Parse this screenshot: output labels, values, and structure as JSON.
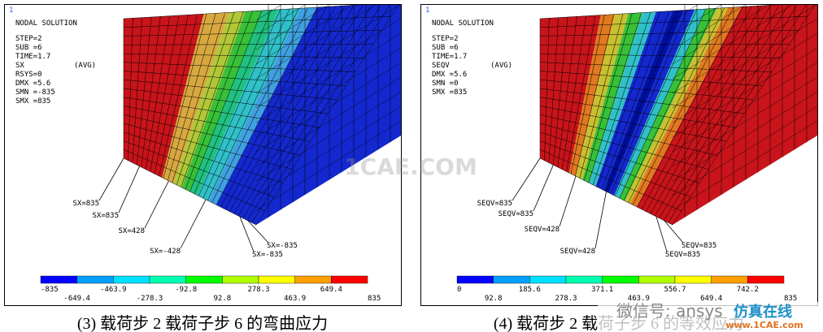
{
  "panels": [
    {
      "index": "1",
      "title": "NODAL SOLUTION",
      "info": [
        "STEP=2",
        "SUB =6",
        "TIME=1.7",
        "SX",
        "RSYS=0",
        "DMX =5.6",
        "SMN =-835",
        "SMX =835"
      ],
      "avg": "(AVG)",
      "annotations": [
        "SX=835",
        "SX=835",
        "SX=428",
        "SX=-428",
        "SX=-835",
        "SX=-835"
      ],
      "legend": {
        "top": [
          "-835",
          "-463.9",
          "-92.8",
          "278.3",
          "649.4"
        ],
        "bottom": [
          "-649.4",
          "-278.3",
          "92.8",
          "463.9",
          "835"
        ]
      },
      "caption": "(3) 载荷步 2 载荷子步 6 的弯曲应力"
    },
    {
      "index": "1",
      "title": "NODAL SOLUTION",
      "info": [
        "STEP=2",
        "SUB =6",
        "TIME=1.7",
        "SEQV",
        "DMX =5.6",
        "SMN =0",
        "SMX =835"
      ],
      "avg": "(AVG)",
      "annotations": [
        "SEQV=835",
        "SEQV=835",
        "SEQV=428",
        "SEQV=428",
        "SEQV=835",
        "SEQV=835"
      ],
      "legend": {
        "top": [
          "0",
          "185.6",
          "371.1",
          "556.7",
          "742.2"
        ],
        "bottom": [
          "92.8",
          "278.3",
          "463.9",
          "649.4",
          "835"
        ]
      },
      "caption": "(4) 载荷步 2 载荷子步 6 的等效应力"
    }
  ],
  "watermarks": {
    "center": "1CAE.COM",
    "wechat": "微信号: ansys",
    "brand": "仿真在线",
    "site": "www.1CAE.com"
  }
}
